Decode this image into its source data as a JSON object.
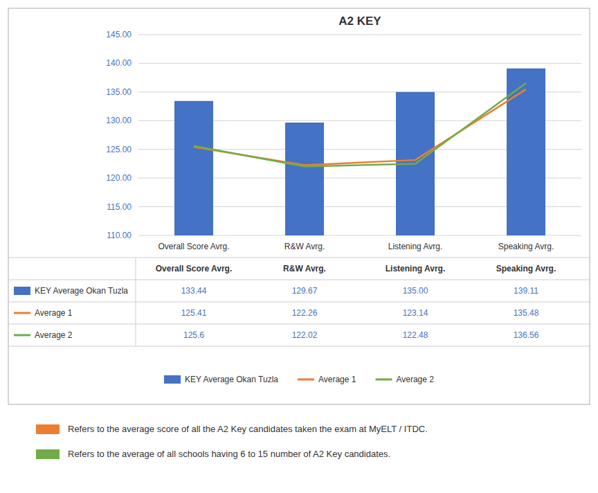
{
  "chart_data": {
    "type": "bar",
    "title": "A2 KEY",
    "categories": [
      "Overall Score Avrg.",
      "R&W Avrg.",
      "Listening Avrg.",
      "Speaking Avrg."
    ],
    "series": [
      {
        "name": "KEY Average Okan Tuzla",
        "type": "bar",
        "color": "#4472C4",
        "values": [
          133.44,
          129.67,
          135.0,
          139.11
        ],
        "value_labels": [
          "133.44",
          "129.67",
          "135.00",
          "139.11"
        ]
      },
      {
        "name": "Average 1",
        "type": "line",
        "color": "#ED7D31",
        "values": [
          125.41,
          122.26,
          123.14,
          135.48
        ],
        "value_labels": [
          "125.41",
          "122.26",
          "123.14",
          "135.48"
        ]
      },
      {
        "name": "Average 2",
        "type": "line",
        "color": "#70AD47",
        "values": [
          125.6,
          122.02,
          122.48,
          136.56
        ],
        "value_labels": [
          "125.6",
          "122.02",
          "122.48",
          "136.56"
        ]
      }
    ],
    "ylim": [
      110.0,
      145.0
    ],
    "yticks": [
      {
        "value": 110.0,
        "label": "110.00"
      },
      {
        "value": 115.0,
        "label": "115.00"
      },
      {
        "value": 120.0,
        "label": "120.00"
      },
      {
        "value": 125.0,
        "label": "125.00"
      },
      {
        "value": 130.0,
        "label": "130.00"
      },
      {
        "value": 135.0,
        "label": "135.00"
      },
      {
        "value": 140.0,
        "label": "140.00"
      },
      {
        "value": 145.0,
        "label": "145.00"
      }
    ],
    "grid": true,
    "legend": "bottom",
    "annotations": [
      {
        "text": "Refers to the average score of all the A2 Key candidates taken the exam at MyELT / ITDC.",
        "color": "#ED7D31"
      },
      {
        "text": "Refers to the average of all schools having 6 to 15 number of A2 Key candidates.",
        "color": "#70AD47"
      }
    ]
  }
}
